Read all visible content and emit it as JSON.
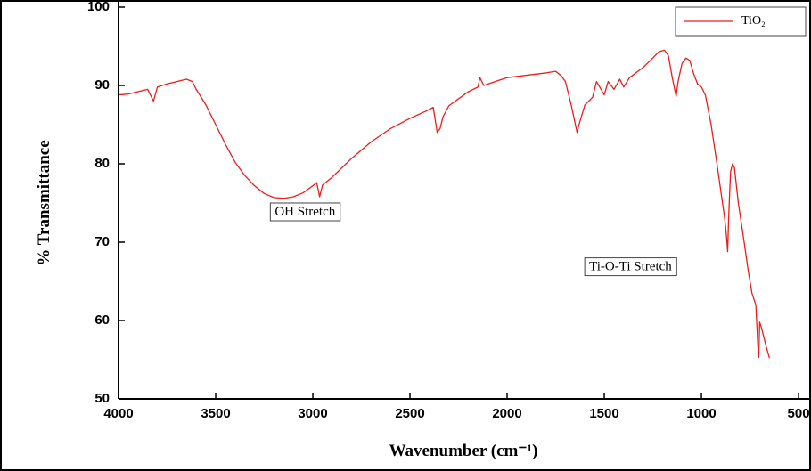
{
  "chart_data": {
    "type": "line",
    "x_label": "Wavenumber (cm⁻¹)",
    "y_label": "% Transmittance",
    "xlim": [
      4000,
      436
    ],
    "ylim": [
      50,
      100
    ],
    "xticks": [
      4000,
      3500,
      3000,
      2500,
      2000,
      1500,
      1000,
      500
    ],
    "yticks": [
      50,
      60,
      70,
      80,
      90,
      100
    ],
    "legend": "upper right",
    "annotations": [
      {
        "text": "OH Stretch",
        "x": 3040,
        "y": 73.8
      },
      {
        "text": "Ti-O-Ti Stretch",
        "x": 1365,
        "y": 66.8
      }
    ],
    "x": [
      4000,
      3950,
      3900,
      3850,
      3820,
      3800,
      3750,
      3700,
      3650,
      3620,
      3600,
      3550,
      3500,
      3450,
      3400,
      3350,
      3300,
      3250,
      3200,
      3150,
      3100,
      3050,
      3000,
      2980,
      2965,
      2950,
      2900,
      2850,
      2800,
      2700,
      2600,
      2500,
      2420,
      2380,
      2360,
      2345,
      2330,
      2300,
      2200,
      2150,
      2140,
      2120,
      2050,
      2000,
      1900,
      1800,
      1750,
      1720,
      1700,
      1670,
      1640,
      1630,
      1600,
      1560,
      1540,
      1500,
      1480,
      1450,
      1420,
      1400,
      1370,
      1300,
      1250,
      1220,
      1190,
      1170,
      1150,
      1130,
      1120,
      1100,
      1080,
      1060,
      1040,
      1020,
      1000,
      980,
      950,
      920,
      900,
      880,
      870,
      865,
      860,
      850,
      840,
      830,
      810,
      780,
      760,
      740,
      720,
      710,
      705,
      700,
      690,
      670,
      650
    ],
    "series": [
      {
        "name": "TiO₂",
        "color": "#ee1c1c",
        "values": [
          88.8,
          88.9,
          89.2,
          89.5,
          88,
          89.8,
          90.2,
          90.5,
          90.8,
          90.5,
          89.5,
          87.5,
          85,
          82.5,
          80.2,
          78.5,
          77.2,
          76.2,
          75.7,
          75.6,
          75.8,
          76.3,
          77.2,
          77.6,
          75.8,
          77.3,
          78.3,
          79.5,
          80.7,
          82.8,
          84.5,
          85.8,
          86.7,
          87.2,
          84,
          84.5,
          86,
          87.4,
          89.2,
          89.8,
          91,
          90,
          90.6,
          91.0,
          91.3,
          91.6,
          91.8,
          91.2,
          90.5,
          87.5,
          84,
          85,
          87.5,
          88.5,
          90.5,
          88.8,
          90.5,
          89.5,
          90.8,
          89.8,
          91,
          92.3,
          93.5,
          94.3,
          94.5,
          93.8,
          91,
          88.6,
          90.5,
          92.8,
          93.5,
          93.2,
          91.5,
          90.2,
          89.8,
          88.8,
          85,
          80,
          76.5,
          73,
          70.5,
          68.8,
          73,
          79,
          80.0,
          79.5,
          75,
          70,
          66.5,
          63.5,
          62,
          57,
          55.3,
          59.8,
          59,
          57,
          55.2
        ]
      }
    ]
  }
}
